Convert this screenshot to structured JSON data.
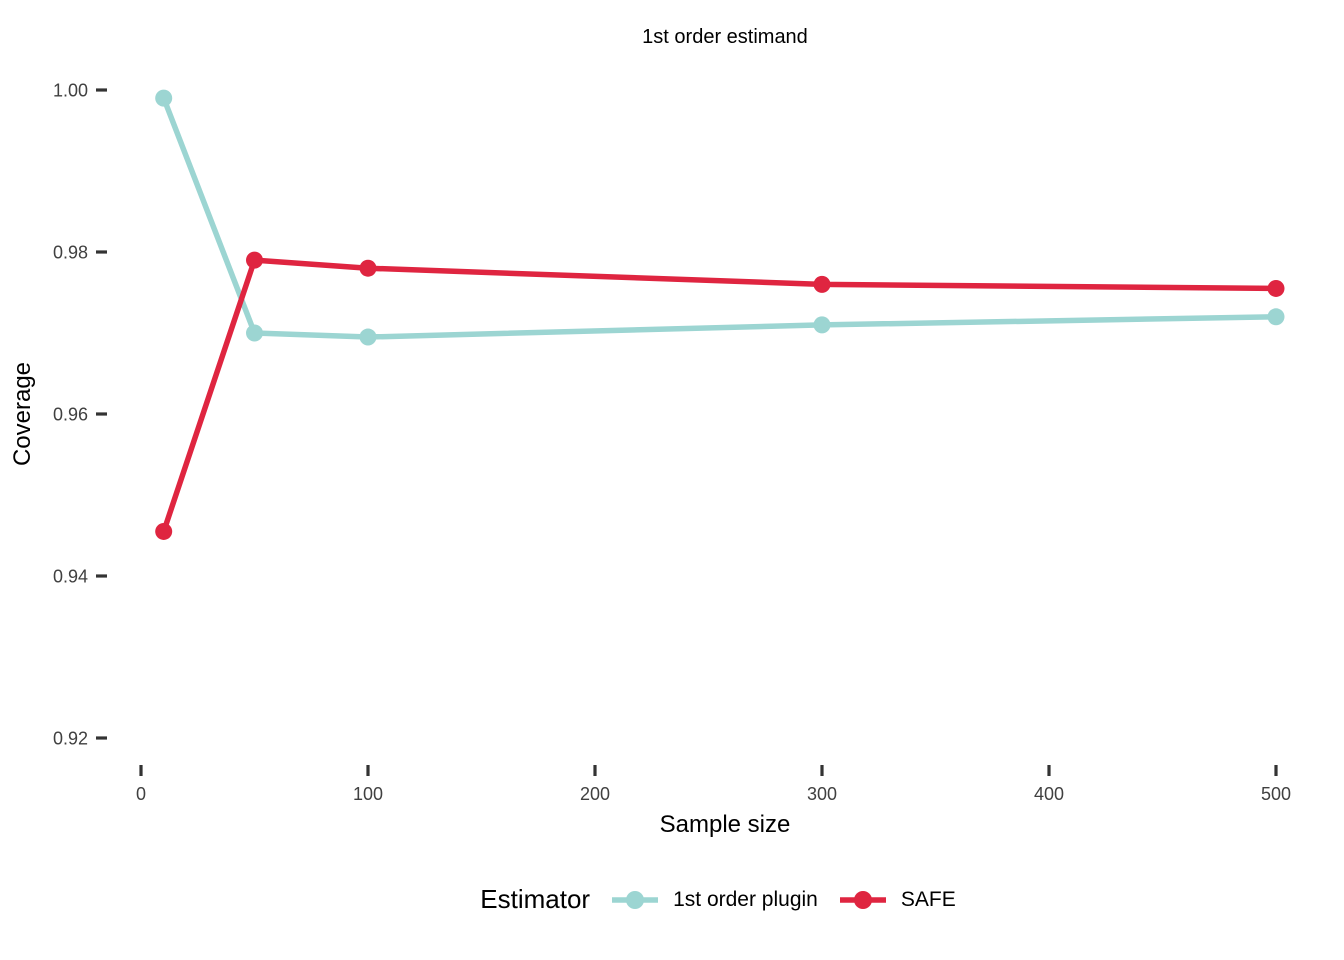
{
  "chart_data": {
    "type": "line",
    "title": "1st order estimand",
    "xlabel": "Sample size",
    "ylabel": "Coverage",
    "legend_title": "Estimator",
    "legend_position": "bottom",
    "grid": false,
    "axis_lines": false,
    "xlim": [
      0,
      500
    ],
    "ylim": [
      0.92,
      1.0
    ],
    "x_ticks": [
      0,
      100,
      200,
      300,
      400,
      500
    ],
    "y_ticks": [
      "0.92",
      "0.94",
      "0.96",
      "0.98",
      "1.00"
    ],
    "series": [
      {
        "name": "1st order plugin",
        "color": "#9CD5D2",
        "x": [
          10,
          50,
          100,
          300,
          500
        ],
        "y": [
          0.999,
          0.97,
          0.9695,
          0.971,
          0.972
        ]
      },
      {
        "name": "SAFE",
        "color": "#DF2540",
        "x": [
          10,
          50,
          100,
          300,
          500
        ],
        "y": [
          0.9455,
          0.979,
          0.978,
          0.976,
          0.9755
        ]
      }
    ],
    "tick_color": "#333333",
    "tick_label_color": "#404040"
  }
}
